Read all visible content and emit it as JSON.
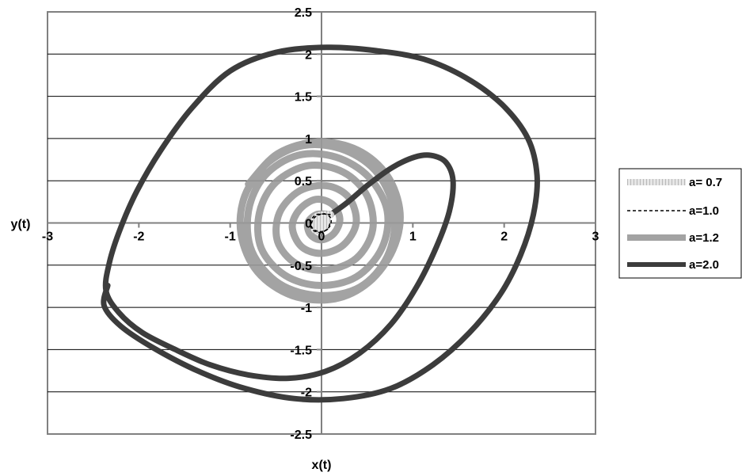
{
  "chart_data": {
    "type": "line",
    "title": "",
    "xlabel": "x(t)",
    "ylabel": "y(t)",
    "xlim": [
      -3,
      3
    ],
    "ylim": [
      -2.5,
      2.5
    ],
    "x_ticks": [
      -3,
      -2,
      -1,
      0,
      1,
      2,
      3
    ],
    "y_ticks": [
      -2.5,
      -2,
      -1.5,
      -1,
      -0.5,
      0,
      0.5,
      1,
      1.5,
      2,
      2.5
    ],
    "x_tick_labels": [
      "-3",
      "-2",
      "-1",
      "0",
      "1",
      "2",
      "3"
    ],
    "y_tick_labels": [
      "-2.5",
      "-2",
      "-1.5",
      "-1",
      "-0.5",
      "0",
      "0.5",
      "1",
      "1.5",
      "2",
      "2.5"
    ],
    "grid": "horizontal",
    "legend_position": "right",
    "series": [
      {
        "name": "a= 0.7",
        "color": "#c8c8c8",
        "style": "thick-light-hatched",
        "points": [
          [
            0.1,
            0.1
          ],
          [
            -0.05,
            0.08
          ],
          [
            -0.09,
            -0.02
          ],
          [
            -0.06,
            -0.09
          ],
          [
            0.02,
            -0.07
          ],
          [
            0.07,
            0.0
          ],
          [
            0.05,
            0.06
          ],
          [
            -0.01,
            0.06
          ],
          [
            -0.04,
            0.0
          ],
          [
            -0.02,
            -0.04
          ],
          [
            0.02,
            -0.03
          ],
          [
            0.03,
            0.0
          ],
          [
            0.0,
            0.02
          ]
        ]
      },
      {
        "name": "a=1.0",
        "color": "#000000",
        "style": "dashed",
        "points": [
          [
            0.1,
            0.1
          ],
          [
            -0.05,
            0.1
          ],
          [
            -0.12,
            0.02
          ],
          [
            -0.1,
            -0.08
          ],
          [
            0.0,
            -0.11
          ],
          [
            0.09,
            -0.04
          ],
          [
            0.1,
            0.06
          ],
          [
            0.02,
            0.11
          ],
          [
            -0.08,
            0.06
          ],
          [
            -0.11,
            -0.04
          ],
          [
            -0.04,
            -0.1
          ],
          [
            0.06,
            -0.08
          ],
          [
            0.1,
            0.02
          ]
        ]
      },
      {
        "name": "a=1.2",
        "color": "#999999",
        "style": "thick-gray",
        "points": [
          [
            0.1,
            0.1
          ],
          [
            -0.05,
            0.1
          ],
          [
            -0.15,
            0.0
          ],
          [
            -0.12,
            -0.14
          ],
          [
            0.0,
            -0.2
          ],
          [
            0.14,
            -0.12
          ],
          [
            0.2,
            0.05
          ],
          [
            0.12,
            0.22
          ],
          [
            -0.06,
            0.28
          ],
          [
            -0.24,
            0.16
          ],
          [
            -0.32,
            -0.05
          ],
          [
            -0.22,
            -0.28
          ],
          [
            0.0,
            -0.36
          ],
          [
            0.24,
            -0.26
          ],
          [
            0.38,
            0.0
          ],
          [
            0.3,
            0.3
          ],
          [
            0.06,
            0.44
          ],
          [
            -0.24,
            0.38
          ],
          [
            -0.46,
            0.12
          ],
          [
            -0.48,
            -0.22
          ],
          [
            -0.28,
            -0.48
          ],
          [
            0.04,
            -0.56
          ],
          [
            0.38,
            -0.42
          ],
          [
            0.56,
            -0.08
          ],
          [
            0.5,
            0.32
          ],
          [
            0.24,
            0.6
          ],
          [
            -0.14,
            0.68
          ],
          [
            -0.5,
            0.48
          ],
          [
            -0.68,
            0.12
          ],
          [
            -0.66,
            -0.3
          ],
          [
            -0.4,
            -0.62
          ],
          [
            -0.02,
            -0.74
          ],
          [
            0.38,
            -0.64
          ],
          [
            0.66,
            -0.3
          ],
          [
            0.72,
            0.14
          ],
          [
            0.52,
            0.54
          ],
          [
            0.16,
            0.78
          ],
          [
            -0.26,
            0.8
          ],
          [
            -0.62,
            0.56
          ],
          [
            -0.8,
            0.14
          ],
          [
            -0.76,
            -0.34
          ],
          [
            -0.46,
            -0.72
          ],
          [
            -0.02,
            -0.86
          ],
          [
            0.42,
            -0.76
          ],
          [
            0.72,
            -0.4
          ],
          [
            0.8,
            0.1
          ],
          [
            0.62,
            0.58
          ],
          [
            0.26,
            0.86
          ],
          [
            -0.18,
            0.92
          ],
          [
            -0.58,
            0.72
          ],
          [
            -0.84,
            0.32
          ],
          [
            -0.88,
            -0.14
          ],
          [
            -0.7,
            -0.58
          ],
          [
            -0.32,
            -0.86
          ],
          [
            0.14,
            -0.9
          ],
          [
            0.52,
            -0.7
          ],
          [
            0.78,
            -0.32
          ],
          [
            0.86,
            0.12
          ],
          [
            0.72,
            0.56
          ],
          [
            0.4,
            0.86
          ],
          [
            -0.04,
            0.96
          ],
          [
            -0.48,
            0.82
          ],
          [
            -0.8,
            0.46
          ]
        ]
      },
      {
        "name": "a=2.0",
        "color": "#3c3c3c",
        "style": "thick-dark",
        "points": [
          [
            0.1,
            0.1
          ],
          [
            0.28,
            0.24
          ],
          [
            0.52,
            0.46
          ],
          [
            0.78,
            0.66
          ],
          [
            1.02,
            0.78
          ],
          [
            1.2,
            0.8
          ],
          [
            1.36,
            0.72
          ],
          [
            1.44,
            0.5
          ],
          [
            1.4,
            0.14
          ],
          [
            1.26,
            -0.28
          ],
          [
            1.04,
            -0.76
          ],
          [
            0.76,
            -1.2
          ],
          [
            0.42,
            -1.54
          ],
          [
            0.04,
            -1.76
          ],
          [
            -0.36,
            -1.84
          ],
          [
            -0.8,
            -1.8
          ],
          [
            -1.22,
            -1.68
          ],
          [
            -1.6,
            -1.5
          ],
          [
            -1.96,
            -1.3
          ],
          [
            -2.22,
            -1.06
          ],
          [
            -2.36,
            -0.8
          ],
          [
            -2.32,
            -0.46
          ],
          [
            -2.2,
            -0.06
          ],
          [
            -2.02,
            0.38
          ],
          [
            -1.76,
            0.86
          ],
          [
            -1.42,
            1.36
          ],
          [
            -1.0,
            1.8
          ],
          [
            -0.5,
            2.02
          ],
          [
            0.06,
            2.08
          ],
          [
            0.6,
            2.04
          ],
          [
            1.12,
            1.94
          ],
          [
            1.58,
            1.72
          ],
          [
            1.98,
            1.4
          ],
          [
            2.26,
            1.0
          ],
          [
            2.36,
            0.56
          ],
          [
            2.32,
            0.1
          ],
          [
            2.18,
            -0.38
          ],
          [
            1.96,
            -0.84
          ],
          [
            1.62,
            -1.3
          ],
          [
            1.22,
            -1.68
          ],
          [
            0.76,
            -1.96
          ],
          [
            0.24,
            -2.08
          ],
          [
            -0.3,
            -2.08
          ],
          [
            -0.84,
            -1.96
          ],
          [
            -1.34,
            -1.76
          ],
          [
            -1.84,
            -1.48
          ],
          [
            -2.2,
            -1.22
          ],
          [
            -2.38,
            -0.98
          ],
          [
            -2.34,
            -0.74
          ]
        ]
      }
    ]
  }
}
